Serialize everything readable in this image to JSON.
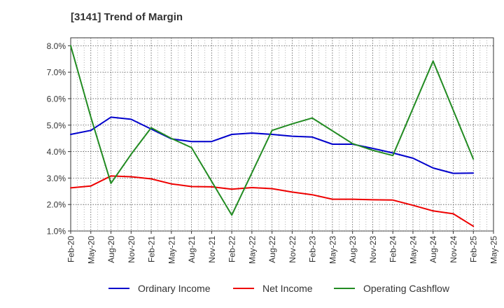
{
  "title": "[3141]  Trend of Margin",
  "chart_data": {
    "type": "line",
    "title": "[3141]  Trend of Margin",
    "xlabel": "",
    "ylabel": "",
    "categories": [
      "Feb-20",
      "May-20",
      "Aug-20",
      "Nov-20",
      "Feb-21",
      "May-21",
      "Aug-21",
      "Nov-21",
      "Feb-22",
      "May-22",
      "Aug-22",
      "Nov-22",
      "Feb-23",
      "May-23",
      "Aug-23",
      "Nov-23",
      "Feb-24",
      "May-24",
      "Aug-24",
      "Nov-24",
      "Feb-25",
      "May-25"
    ],
    "ylim": [
      1.0,
      8.3
    ],
    "yticks": [
      1.0,
      2.0,
      3.0,
      4.0,
      5.0,
      6.0,
      7.0,
      8.0
    ],
    "ytick_labels": [
      "1.0%",
      "2.0%",
      "3.0%",
      "4.0%",
      "5.0%",
      "6.0%",
      "7.0%",
      "8.0%"
    ],
    "grid": true,
    "legend_position": "bottom",
    "series": [
      {
        "name": "Ordinary Income",
        "color": "#0000cc",
        "values": [
          4.65,
          4.8,
          5.3,
          5.22,
          4.85,
          4.48,
          4.38,
          4.38,
          4.65,
          4.7,
          4.65,
          4.58,
          4.55,
          4.28,
          4.28,
          4.12,
          3.95,
          3.75,
          3.38,
          3.18,
          3.19,
          null
        ]
      },
      {
        "name": "Net Income",
        "color": "#ee0000",
        "values": [
          2.63,
          2.7,
          3.08,
          3.05,
          2.97,
          2.78,
          2.68,
          2.67,
          2.58,
          2.64,
          2.6,
          2.47,
          2.37,
          2.2,
          2.2,
          2.18,
          2.17,
          1.97,
          1.76,
          1.65,
          1.18,
          null
        ]
      },
      {
        "name": "Operating Cashflow",
        "color": "#228b22",
        "values": [
          8.0,
          5.3,
          2.8,
          3.9,
          4.9,
          4.5,
          4.15,
          null,
          1.6,
          3.2,
          4.8,
          5.05,
          5.27,
          null,
          4.3,
          4.05,
          3.85,
          null,
          7.42,
          null,
          3.72,
          null
        ]
      }
    ]
  }
}
